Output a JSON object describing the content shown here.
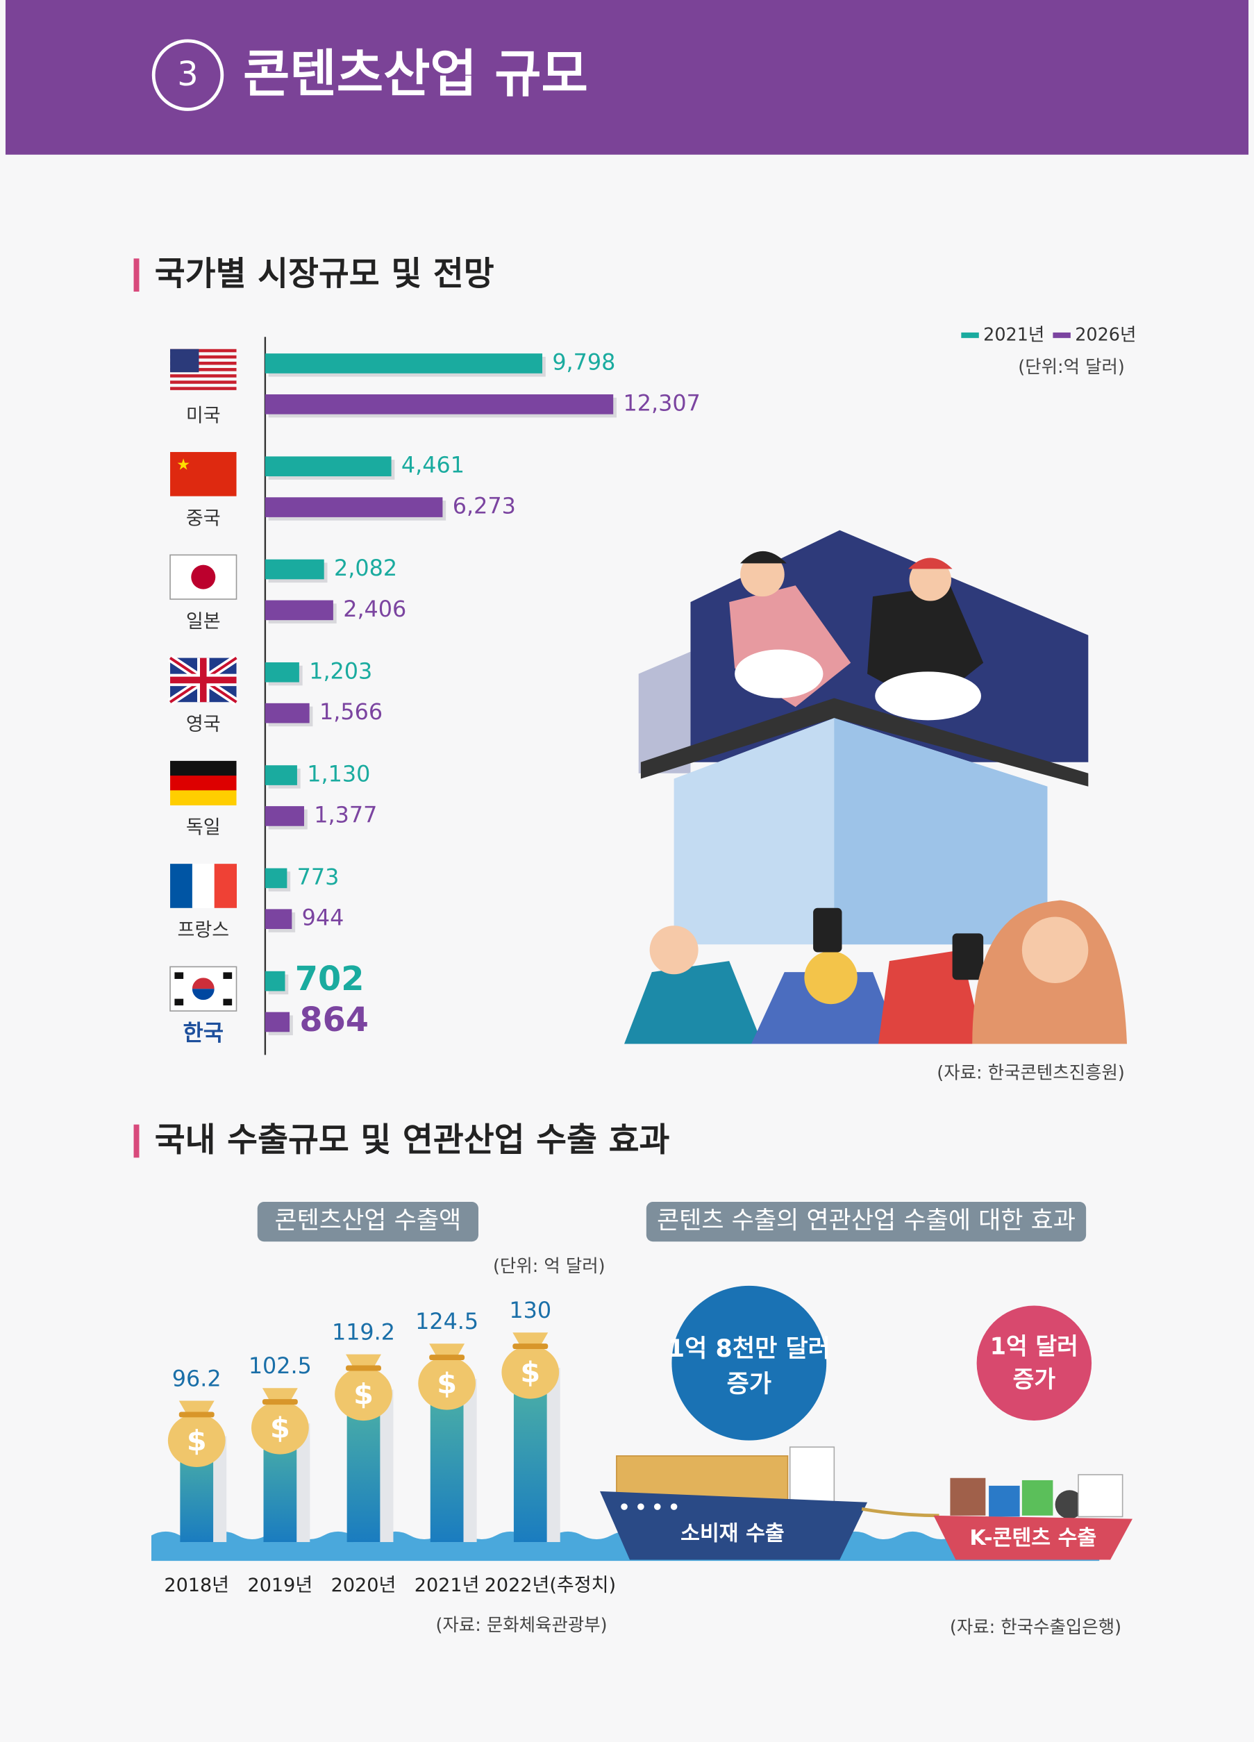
{
  "header": {
    "number": "3",
    "title": "콘텐츠산업 규모"
  },
  "chart_data": [
    {
      "type": "hbar",
      "title": "국가별 시장규모 및 전망",
      "unit": "(단위:억 달러)",
      "source": "(자료: 한국콘텐츠진흥원)",
      "categories": [
        "미국",
        "중국",
        "일본",
        "영국",
        "독일",
        "프랑스",
        "한국"
      ],
      "series": [
        {
          "name": "2021년",
          "color": "#1aab9f",
          "values": [
            9798,
            4461,
            2082,
            1203,
            1130,
            773,
            702
          ],
          "value_labels": [
            "9,798",
            "4,461",
            "2,082",
            "1,203",
            "1,130",
            "773",
            "702"
          ]
        },
        {
          "name": "2026년",
          "color": "#7b44a0",
          "values": [
            12307,
            6273,
            2406,
            1566,
            1377,
            944,
            864
          ],
          "value_labels": [
            "12,307",
            "6,273",
            "2,406",
            "1,566",
            "1,377",
            "944",
            "864"
          ]
        }
      ],
      "xlim": [
        0,
        12500
      ],
      "legend": "top-right"
    },
    {
      "type": "bar",
      "title": "콘텐츠산업 수출액",
      "unit": "(단위: 억 달러)",
      "source": "(자료: 문화체육관광부)",
      "categories": [
        "2018년",
        "2019년",
        "2020년",
        "2021년",
        "2022년(추정치)"
      ],
      "values": [
        96.2,
        102.5,
        119.2,
        124.5,
        130
      ],
      "color": "#3f9ea8",
      "ylim": [
        0,
        140
      ]
    }
  ],
  "section2_title": "국내 수출규모 및 연관산업 수출 효과",
  "effects": {
    "title": "콘텐츠 수출의 연관산업 수출에 대한 효과",
    "items": [
      {
        "amount": "1억 8천만 달러",
        "change": "증가",
        "label": "소비재 수출"
      },
      {
        "amount": "1억 달러",
        "change": "증가",
        "label": "K-콘텐츠 수출"
      }
    ],
    "source": "(자료: 한국수출입은행)"
  }
}
